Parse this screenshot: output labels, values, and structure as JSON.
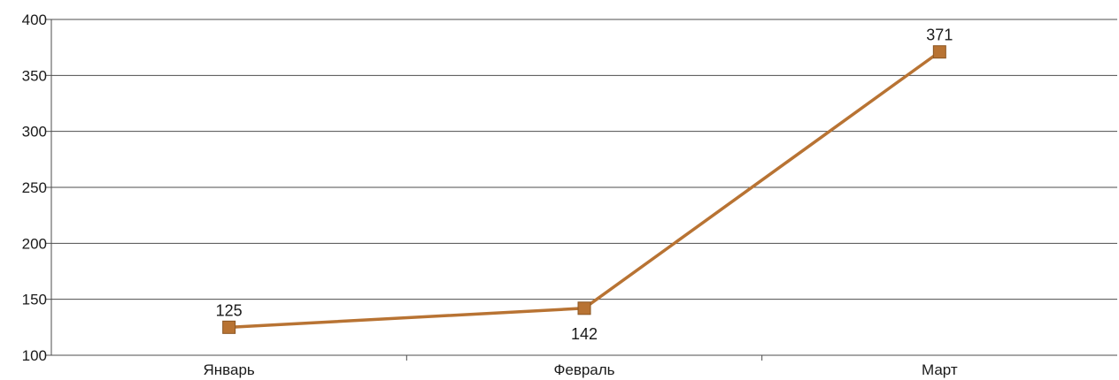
{
  "chart_data": {
    "type": "line",
    "categories": [
      "Январь",
      "Февраль",
      "Март"
    ],
    "series": [
      {
        "values": [
          125,
          142,
          371
        ],
        "data_labels": [
          "125",
          "142",
          "371"
        ],
        "color": "#b87333",
        "marker": "square"
      }
    ],
    "ylim": [
      100,
      400
    ],
    "yticks": [
      100,
      150,
      200,
      250,
      300,
      350,
      400
    ],
    "ytick_labels": [
      "100",
      "150",
      "200",
      "250",
      "300",
      "350",
      "400"
    ],
    "grid": true,
    "legend": "none",
    "colors": {
      "line": "#b87333",
      "marker_fill": "#b87333",
      "marker_stroke": "#8a5522",
      "grid": "#4d4d4d",
      "axis": "#4d4d4d",
      "text": "#1a1a1a"
    }
  }
}
